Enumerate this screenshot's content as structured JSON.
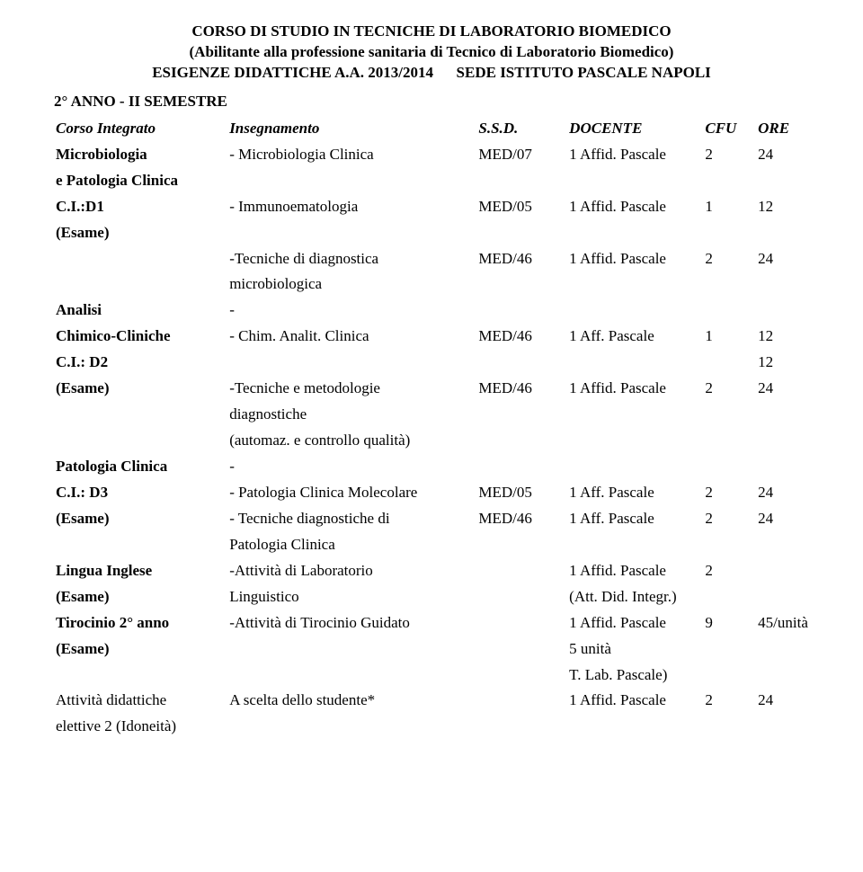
{
  "header": {
    "line1": "CORSO DI STUDIO IN TECNICHE DI LABORATORIO BIOMEDICO",
    "line2": "(Abilitante alla professione sanitaria di Tecnico di Laboratorio Biomedico)",
    "line3_left": "ESIGENZE DIDATTICHE A.A. 2013/2014",
    "line3_right": "SEDE ISTITUTO PASCALE NAPOLI"
  },
  "subheader": "2° ANNO  - II SEMESTRE",
  "columns": {
    "corso": "Corso Integrato",
    "inseg": "Insegnamento",
    "ssd": "S.S.D.",
    "docente": "DOCENTE",
    "cfu": "CFU",
    "ore": "ORE"
  },
  "rows": [
    {
      "corso": "Microbiologia",
      "corso_b": true,
      "inseg": "- Microbiologia Clinica",
      "ssd": "MED/07",
      "doc": "1 Affid. Pascale",
      "cfu": "2",
      "ore": "24"
    },
    {
      "corso": "e Patologia Clinica",
      "corso_b": true
    },
    {
      "corso": "C.I.:D1",
      "corso_b": true,
      "inseg": "- Immunoematologia",
      "ssd": "MED/05",
      "doc": "1 Affid. Pascale",
      "cfu": "1",
      "ore": "12"
    },
    {
      "corso": "(Esame)",
      "corso_b": true
    },
    {
      "inseg": "-Tecniche di diagnostica",
      "ssd": "MED/46",
      "doc": "1 Affid. Pascale",
      "cfu": "2",
      "ore": "24"
    },
    {
      "inseg": "microbiologica"
    },
    {
      "corso": "Analisi",
      "corso_b": true,
      "inseg": "-"
    },
    {
      "corso": "Chimico-Cliniche",
      "corso_b": true,
      "inseg": "- Chim. Analit. Clinica",
      "ssd": "MED/46",
      "doc": "1 Aff. Pascale",
      "cfu": "1",
      "ore": "12"
    },
    {
      "corso": "C.I.: D2",
      "corso_b": true,
      "ore": "12"
    },
    {
      "corso": "(Esame)",
      "corso_b": true,
      "inseg": "-Tecniche e metodologie",
      "ssd": "MED/46",
      "doc": "1 Affid. Pascale",
      "cfu": "2",
      "ore": "24"
    },
    {
      "inseg": "diagnostiche"
    },
    {
      "inseg": "(automaz. e controllo qualità)"
    },
    {
      "corso": "Patologia Clinica",
      "corso_b": true,
      "inseg": "-"
    },
    {
      "corso": "C.I.: D3",
      "corso_b": true,
      "inseg": "- Patologia Clinica Molecolare",
      "ssd": "MED/05",
      "doc": "1 Aff. Pascale",
      "cfu": "2",
      "ore": "24"
    },
    {
      "corso": "(Esame)",
      "corso_b": true,
      "inseg": "- Tecniche diagnostiche di",
      "ssd": "MED/46",
      "doc": "1 Aff. Pascale",
      "cfu": "2",
      "ore": "24"
    },
    {
      "inseg": "Patologia Clinica"
    },
    {
      "corso": "Lingua Inglese",
      "corso_b": true,
      "inseg": "-Attività di Laboratorio",
      "doc": "1 Affid. Pascale",
      "cfu": "2"
    },
    {
      "corso": " (Esame)",
      "corso_b": true,
      "inseg": "Linguistico",
      "doc": "(Att. Did. Integr.)"
    },
    {
      "corso": "Tirocinio 2° anno",
      "corso_b": true,
      "inseg": "-Attività di Tirocinio Guidato",
      "doc": "1 Affid. Pascale",
      "cfu": "9",
      "ore": "45/unità"
    },
    {
      "corso": "(Esame)",
      "corso_b": true,
      "doc": " 5 unità"
    },
    {
      "doc": "T. Lab. Pascale)"
    },
    {
      "corso": "Attività didattiche",
      "inseg": "A scelta dello studente*",
      "doc": "1 Affid. Pascale",
      "cfu": "2",
      "ore": "24"
    },
    {
      "corso": "elettive 2 (Idoneità)"
    }
  ]
}
